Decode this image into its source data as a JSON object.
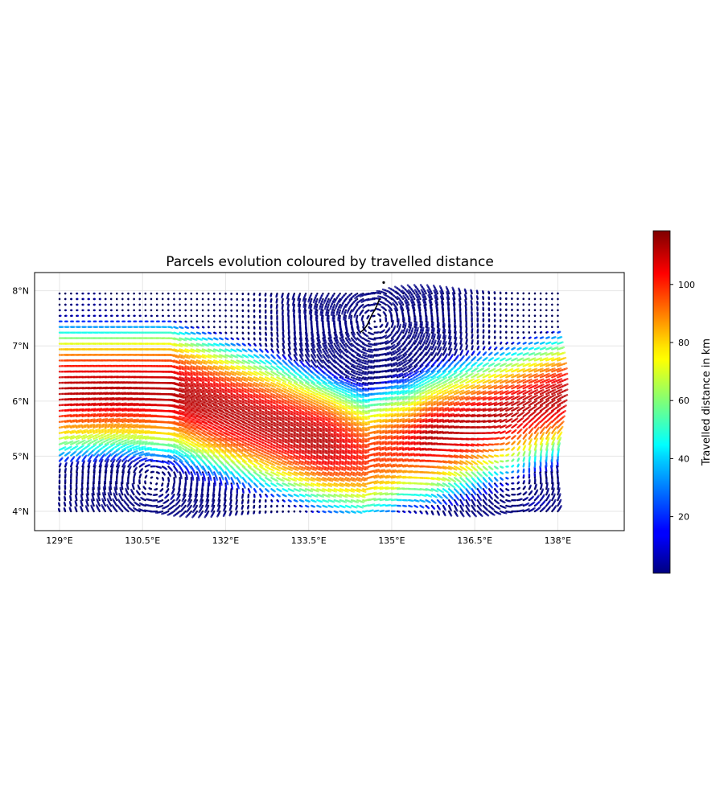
{
  "chart_data": {
    "type": "scatter",
    "title": "Parcels evolution coloured by travelled distance",
    "xlabel": "",
    "ylabel": "",
    "xlim": [
      128.55,
      139.2
    ],
    "ylim": [
      3.65,
      8.33
    ],
    "x_ticks": [
      129,
      130.5,
      132,
      133.5,
      135,
      136.5,
      138
    ],
    "x_tick_labels": [
      "129°E",
      "130.5°E",
      "132°E",
      "133.5°E",
      "135°E",
      "136.5°E",
      "138°E"
    ],
    "y_ticks": [
      4,
      5,
      6,
      7,
      8
    ],
    "y_tick_labels": [
      "4°N",
      "5°N",
      "6°N",
      "7°N",
      "8°N"
    ],
    "grid": true,
    "colormap": "jet",
    "colorbar": {
      "label": "Travelled distance in km",
      "range": [
        0.5,
        118.5
      ],
      "ticks": [
        20,
        40,
        60,
        80,
        100
      ],
      "tick_labels": [
        "20",
        "40",
        "60",
        "80",
        "100"
      ]
    },
    "parcel_grid": {
      "lon_range": [
        129.0,
        138.0
      ],
      "lat_range": [
        4.0,
        7.95
      ],
      "columns": 88,
      "rows": 40,
      "steps_per_track": 4
    },
    "distance_field_km": {
      "description": "travelled distance by initial position",
      "max_band": {
        "lon": [
          129.0,
          133.0
        ],
        "lat": [
          5.3,
          6.4
        ],
        "value": 110
      },
      "east_band": {
        "lon": [
          135.0,
          138.5
        ],
        "lat": [
          5.4,
          6.7
        ],
        "value": 95
      },
      "low_areas": [
        {
          "lon": 134.8,
          "lat": 7.5,
          "value": 1
        },
        {
          "lon": 131.0,
          "lat": 4.3,
          "value": 5
        },
        {
          "lon": 137.6,
          "lat": 4.1,
          "value": 8
        },
        {
          "lon": 129.5,
          "lat": 7.9,
          "value": 25
        }
      ]
    },
    "island": {
      "lon": 134.55,
      "lat": 7.45
    }
  }
}
